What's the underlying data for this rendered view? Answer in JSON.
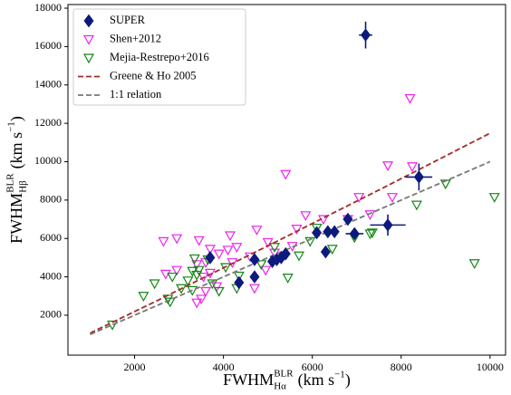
{
  "chart_data": {
    "type": "scatter",
    "xlabel": {
      "text": "FWHM",
      "sup": "BLR",
      "sub": "Hα",
      "unit": "(km s",
      "exp": "−1",
      "end": ")"
    },
    "ylabel": {
      "text": "FWHM",
      "sup": "BLR",
      "sub": "Hβ",
      "unit": "(km s",
      "exp": "−1",
      "end": ")"
    },
    "xlim": [
      500,
      10350
    ],
    "ylim": [
      -80,
      18190
    ],
    "xticks": [
      2000,
      4000,
      6000,
      8000,
      10000
    ],
    "yticks": [
      2000,
      4000,
      6000,
      8000,
      10000,
      12000,
      14000,
      16000,
      18000
    ],
    "grid": false,
    "legend": "upper left",
    "series": [
      {
        "name": "SUPER",
        "color": "#0c1a7c",
        "marker": "diamond",
        "x": [
          7200,
          8400,
          7700,
          6800,
          6100,
          6350,
          6500,
          6950,
          6300,
          4700,
          5100,
          5200,
          5300,
          5400,
          4700,
          4350,
          3700
        ],
        "values": [
          16600,
          9200,
          6700,
          7000,
          6300,
          6350,
          6350,
          6250,
          5300,
          4900,
          4800,
          4900,
          5000,
          5200,
          4000,
          3700,
          5000
        ],
        "xerr": [
          150,
          300,
          400,
          100,
          100,
          100,
          100,
          200,
          100,
          100,
          100,
          100,
          100,
          100,
          100,
          100,
          100
        ],
        "yerr": [
          700,
          700,
          550,
          200,
          200,
          200,
          200,
          300,
          200,
          200,
          200,
          200,
          200,
          200,
          200,
          200,
          200
        ]
      },
      {
        "name": "Shen+2012",
        "color": "#ee22ee",
        "marker": "triangle_down",
        "x": [
          8200,
          5400,
          7700,
          8250,
          7800,
          7050,
          7300,
          5850,
          5650,
          6800,
          6250,
          4750,
          4150,
          3450,
          2650,
          2950,
          3700,
          4100,
          4300,
          5000,
          5550,
          5150,
          4600,
          3900,
          3600,
          3400,
          2700,
          2950,
          4200,
          4950,
          3550,
          3400,
          3500,
          3850,
          4700,
          3600,
          3700
        ],
        "values": [
          13300,
          9350,
          9800,
          9750,
          8150,
          8150,
          7250,
          7200,
          6500,
          7000,
          7000,
          6450,
          6150,
          5900,
          5850,
          6000,
          5450,
          5400,
          5550,
          5800,
          5600,
          5250,
          5050,
          5200,
          4750,
          4650,
          4150,
          4350,
          4750,
          4350,
          4000,
          2650,
          2850,
          3500,
          3400,
          3250,
          4200
        ]
      },
      {
        "name": "Mejia-Restrepo+2016",
        "color": "#118811",
        "marker": "triangle_down",
        "x": [
          10100,
          9000,
          8350,
          9650,
          7350,
          7300,
          6950,
          6450,
          5700,
          5450,
          5150,
          5950,
          6100,
          4350,
          4300,
          4050,
          3650,
          3350,
          3400,
          3750,
          3200,
          3050,
          3300,
          3900,
          2750,
          2800,
          2200,
          2450,
          2850,
          1500,
          3300,
          3450,
          4850
        ],
        "values": [
          8150,
          8850,
          7750,
          4700,
          6300,
          6250,
          6050,
          5450,
          5100,
          3950,
          5550,
          5850,
          6550,
          4050,
          3400,
          4500,
          4900,
          4950,
          4100,
          3650,
          3800,
          3400,
          3300,
          3250,
          2850,
          2700,
          3000,
          3650,
          4000,
          1500,
          4300,
          4350,
          4650
        ]
      },
      {
        "name": "Greene & Ho 2005",
        "color": "#a52a2a",
        "marker": "dashed_line",
        "x": [
          1000,
          2500,
          5000,
          7500,
          10000
        ],
        "values": [
          1070,
          2751,
          5615,
          8525,
          11484
        ]
      },
      {
        "name": "1:1 relation",
        "color": "#777777",
        "marker": "dashed_line",
        "x": [
          1000,
          10000
        ],
        "values": [
          1000,
          10000
        ]
      }
    ]
  }
}
